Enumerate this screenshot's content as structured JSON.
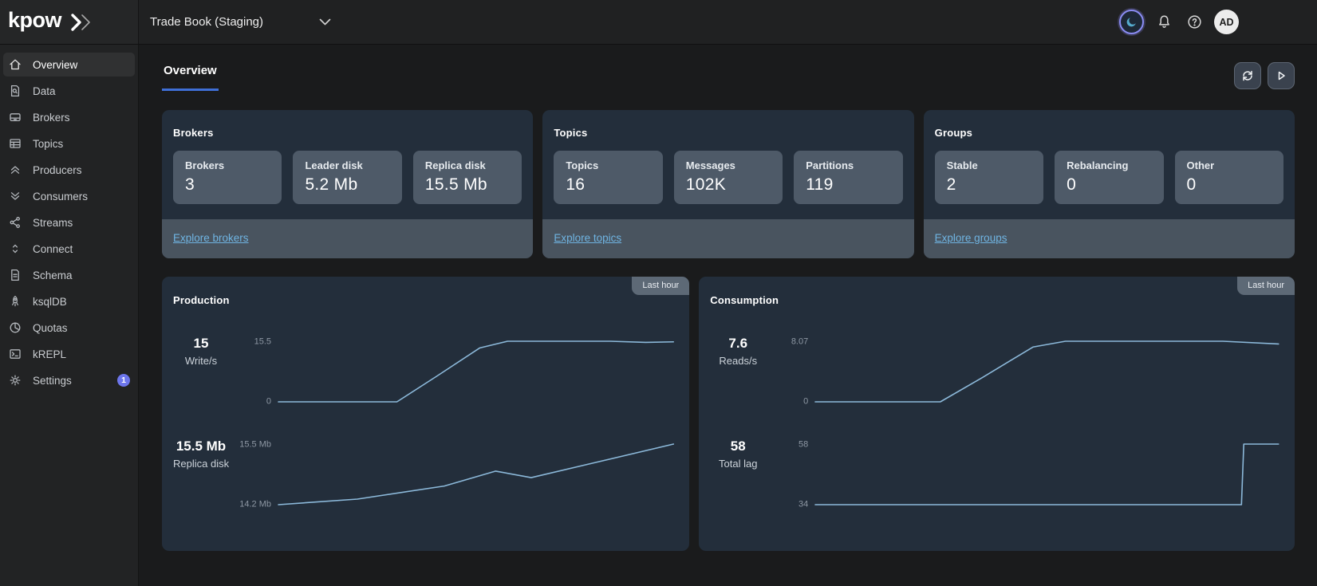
{
  "colors": {
    "accent_blue": "#3f6fd6",
    "link_blue": "#6fb4e2",
    "chart_line": "#8cb9da",
    "badge_indigo": "#6d76ec",
    "card_bg": "#232e3b",
    "tile_bg": "#4e5a68"
  },
  "topbar": {
    "logo_text": "kpow",
    "environment_selector": "Trade Book (Staging)",
    "avatar_initials": "AD"
  },
  "sidebar": {
    "items": [
      {
        "label": "Overview",
        "icon": "home-icon",
        "active": true
      },
      {
        "label": "Data",
        "icon": "data-search-icon"
      },
      {
        "label": "Brokers",
        "icon": "broker-disk-icon"
      },
      {
        "label": "Topics",
        "icon": "table-icon"
      },
      {
        "label": "Producers",
        "icon": "chevrons-up-icon"
      },
      {
        "label": "Consumers",
        "icon": "chevrons-down-icon"
      },
      {
        "label": "Streams",
        "icon": "share-icon"
      },
      {
        "label": "Connect",
        "icon": "sort-arrows-icon"
      },
      {
        "label": "Schema",
        "icon": "document-icon"
      },
      {
        "label": "ksqlDB",
        "icon": "rocket-icon"
      },
      {
        "label": "Quotas",
        "icon": "pie-chart-icon"
      },
      {
        "label": "kREPL",
        "icon": "terminal-icon"
      },
      {
        "label": "Settings",
        "icon": "gear-icon",
        "badge": "1"
      }
    ]
  },
  "header": {
    "active_tab": "Overview",
    "actions": [
      "refresh",
      "play"
    ]
  },
  "summary_cards": [
    {
      "title": "Brokers",
      "stats": [
        {
          "label": "Brokers",
          "value": "3"
        },
        {
          "label": "Leader disk",
          "value": "5.2 Mb"
        },
        {
          "label": "Replica disk",
          "value": "15.5 Mb"
        }
      ],
      "link": "Explore brokers"
    },
    {
      "title": "Topics",
      "stats": [
        {
          "label": "Topics",
          "value": "16"
        },
        {
          "label": "Messages",
          "value": "102K"
        },
        {
          "label": "Partitions",
          "value": "119"
        }
      ],
      "link": "Explore topics"
    },
    {
      "title": "Groups",
      "stats": [
        {
          "label": "Stable",
          "value": "2"
        },
        {
          "label": "Rebalancing",
          "value": "0"
        },
        {
          "label": "Other",
          "value": "0"
        }
      ],
      "link": "Explore groups"
    }
  ],
  "chart_cards": [
    {
      "title": "Production",
      "range_label": "Last hour",
      "rows": [
        {
          "stat_value": "15",
          "stat_label": "Write/s",
          "y_top_label": "15.5",
          "y_bottom_label": "0",
          "chart": {
            "type": "line",
            "x_range": "last hour",
            "y_min": 0,
            "y_max": 15.5,
            "points": [
              [
                0,
                0
              ],
              [
                0.3,
                0
              ],
              [
                0.4,
                6.5
              ],
              [
                0.51,
                13.8
              ],
              [
                0.58,
                15.5
              ],
              [
                0.84,
                15.5
              ],
              [
                0.93,
                15.2
              ],
              [
                1,
                15.35
              ]
            ]
          }
        },
        {
          "stat_value": "15.5 Mb",
          "stat_label": "Replica disk",
          "y_top_label": "15.5 Mb",
          "y_bottom_label": "14.2 Mb",
          "chart": {
            "type": "line",
            "x_range": "last hour",
            "y_min": 14.2,
            "y_max": 15.5,
            "points": [
              [
                0,
                14.2
              ],
              [
                0.2,
                14.32
              ],
              [
                0.42,
                14.6
              ],
              [
                0.55,
                14.92
              ],
              [
                0.64,
                14.78
              ],
              [
                0.8,
                15.1
              ],
              [
                1,
                15.5
              ]
            ]
          }
        }
      ]
    },
    {
      "title": "Consumption",
      "range_label": "Last hour",
      "rows": [
        {
          "stat_value": "7.6",
          "stat_label": "Reads/s",
          "y_top_label": "8.07",
          "y_bottom_label": "0",
          "chart": {
            "type": "line",
            "x_range": "last hour",
            "y_min": 0,
            "y_max": 8.07,
            "points": [
              [
                0,
                0
              ],
              [
                0.27,
                0
              ],
              [
                0.36,
                3.2
              ],
              [
                0.47,
                7.3
              ],
              [
                0.54,
                8.07
              ],
              [
                0.88,
                8.07
              ],
              [
                1,
                7.7
              ]
            ]
          }
        },
        {
          "stat_value": "58",
          "stat_label": "Total lag",
          "y_top_label": "58",
          "y_bottom_label": "34",
          "chart": {
            "type": "line",
            "x_range": "last hour",
            "y_min": 34,
            "y_max": 58,
            "points": [
              [
                0,
                34
              ],
              [
                0.92,
                34
              ],
              [
                0.925,
                58
              ],
              [
                1,
                58
              ]
            ]
          }
        }
      ]
    }
  ]
}
